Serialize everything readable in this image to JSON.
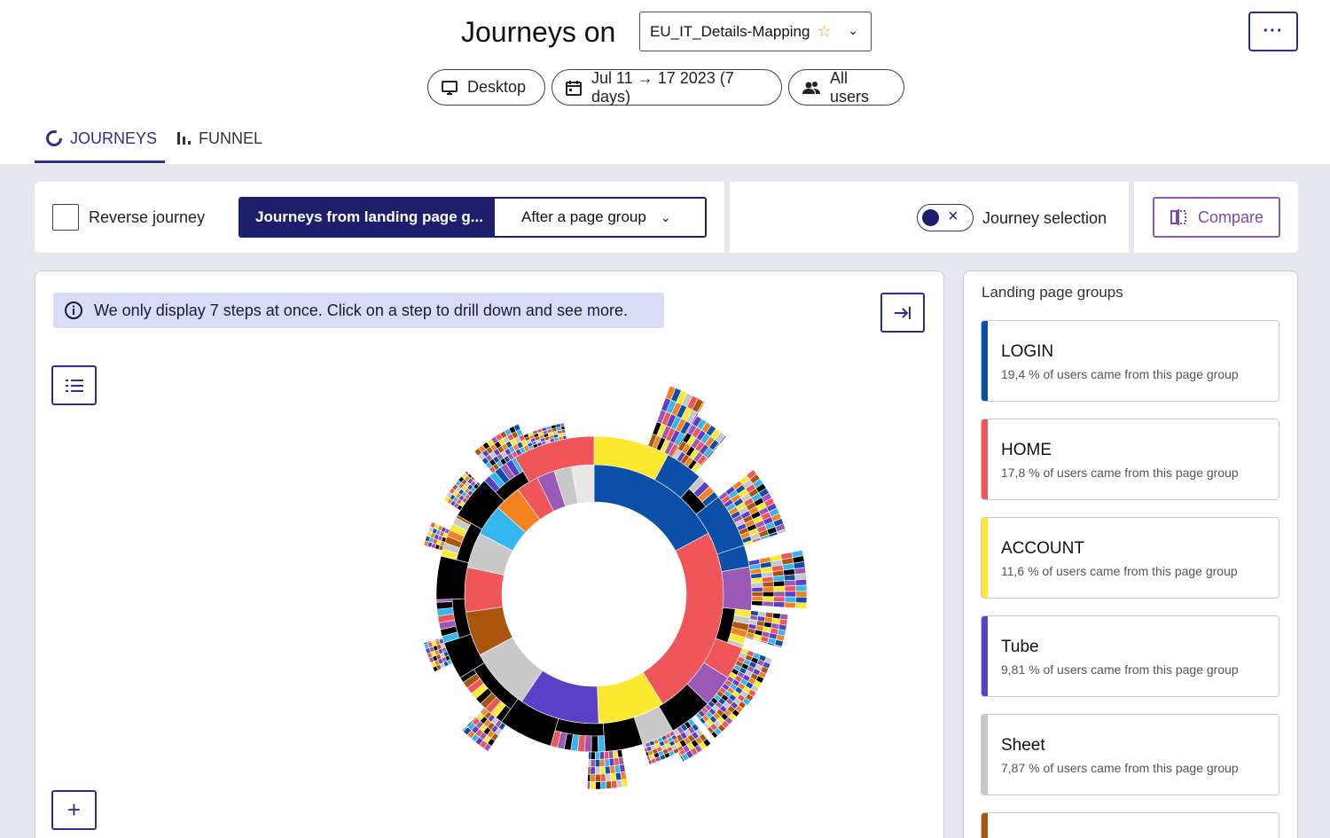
{
  "header": {
    "title": "Journeys on",
    "mapping": "EU_IT_Details-Mapping",
    "more_label": "···"
  },
  "filters": {
    "device": "Desktop",
    "date_range": "Jul 11 → 17 2023 (7 days)",
    "segment": "All users"
  },
  "tabs": [
    {
      "label": "JOURNEYS",
      "active": true
    },
    {
      "label": "FUNNEL",
      "active": false
    }
  ],
  "toolbar": {
    "reverse_label": "Reverse journey",
    "mode_selected": "Journeys from landing page g...",
    "mode_option": "After a page group",
    "journey_selection_label": "Journey selection",
    "compare_label": "Compare"
  },
  "info_banner": "We only display 7 steps at once. Click on a step to drill down and see more.",
  "side_panel": {
    "title": "Landing page groups",
    "groups": [
      {
        "name": "LOGIN",
        "desc": "19,4 % of users came from this page group",
        "color": "#0b4fa8"
      },
      {
        "name": "HOME",
        "desc": "17,8 % of users came from this page group",
        "color": "#f05559"
      },
      {
        "name": "ACCOUNT",
        "desc": "11,6 % of users came from this page group",
        "color": "#fbe930"
      },
      {
        "name": "Tube",
        "desc": "9,81 % of users came from this page group",
        "color": "#5a3fc8"
      },
      {
        "name": "Sheet",
        "desc": "7,87 % of users came from this page group",
        "color": "#c8c8c8"
      },
      {
        "name": "",
        "desc": "",
        "color": "#a9550d"
      }
    ]
  },
  "chart_data": {
    "type": "sunburst",
    "inner_ring": [
      {
        "name": "LOGIN",
        "share": 19.4,
        "color": "#0b4fa8"
      },
      {
        "name": "HOME",
        "share": 17.8,
        "color": "#f05559"
      },
      {
        "name": "ACCOUNT",
        "share": 11.6,
        "color": "#fbe930"
      },
      {
        "name": "Tube",
        "share": 9.81,
        "color": "#5a3fc8"
      },
      {
        "name": "Sheet",
        "share": 7.87,
        "color": "#c8c8c8"
      }
    ]
  }
}
